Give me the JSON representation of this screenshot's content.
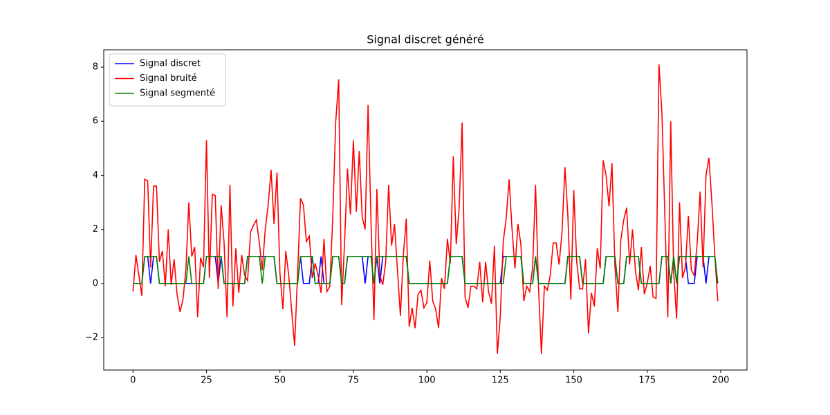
{
  "chart_data": {
    "type": "line",
    "title": "Signal discret généré",
    "x": [
      0,
      1,
      2,
      3,
      4,
      5,
      6,
      7,
      8,
      9,
      10,
      11,
      12,
      13,
      14,
      15,
      16,
      17,
      18,
      19,
      20,
      21,
      22,
      23,
      24,
      25,
      26,
      27,
      28,
      29,
      30,
      31,
      32,
      33,
      34,
      35,
      36,
      37,
      38,
      39,
      40,
      41,
      42,
      43,
      44,
      45,
      46,
      47,
      48,
      49,
      50,
      51,
      52,
      53,
      54,
      55,
      56,
      57,
      58,
      59,
      60,
      61,
      62,
      63,
      64,
      65,
      66,
      67,
      68,
      69,
      70,
      71,
      72,
      73,
      74,
      75,
      76,
      77,
      78,
      79,
      80,
      81,
      82,
      83,
      84,
      85,
      86,
      87,
      88,
      89,
      90,
      91,
      92,
      93,
      94,
      95,
      96,
      97,
      98,
      99,
      100,
      101,
      102,
      103,
      104,
      105,
      106,
      107,
      108,
      109,
      110,
      111,
      112,
      113,
      114,
      115,
      116,
      117,
      118,
      119,
      120,
      121,
      122,
      123,
      124,
      125,
      126,
      127,
      128,
      129,
      130,
      131,
      132,
      133,
      134,
      135,
      136,
      137,
      138,
      139,
      140,
      141,
      142,
      143,
      144,
      145,
      146,
      147,
      148,
      149,
      150,
      151,
      152,
      153,
      154,
      155,
      156,
      157,
      158,
      159,
      160,
      161,
      162,
      163,
      164,
      165,
      166,
      167,
      168,
      169,
      170,
      171,
      172,
      173,
      174,
      175,
      176,
      177,
      178,
      179,
      180,
      181,
      182,
      183,
      184,
      185,
      186,
      187,
      188,
      189,
      190,
      191,
      192,
      193,
      194,
      195,
      196,
      197,
      198,
      199
    ],
    "series": [
      {
        "name": "Signal discret",
        "color": "#0000ff",
        "values": [
          0,
          0,
          0,
          0,
          1,
          1,
          0,
          1,
          1,
          0,
          0,
          0,
          0,
          0,
          0,
          0,
          0,
          0,
          0,
          0,
          0,
          0,
          0,
          0,
          0,
          1,
          1,
          1,
          1,
          0,
          1,
          0,
          0,
          0,
          0,
          0,
          0,
          0,
          0,
          1,
          1,
          1,
          1,
          1,
          1,
          1,
          1,
          1,
          1,
          0,
          0,
          0,
          0,
          0,
          0,
          0,
          0,
          1,
          0,
          0,
          0,
          1,
          0,
          0,
          1,
          0,
          0,
          0,
          1,
          1,
          1,
          0,
          0,
          1,
          1,
          1,
          1,
          1,
          1,
          0,
          1,
          1,
          0,
          1,
          0,
          1,
          1,
          1,
          1,
          1,
          1,
          1,
          1,
          1,
          0,
          0,
          0,
          0,
          0,
          0,
          0,
          0,
          0,
          0,
          0,
          0,
          0,
          0,
          1,
          1,
          1,
          1,
          1,
          0,
          0,
          0,
          0,
          0,
          0,
          0,
          0,
          0,
          0,
          0,
          0,
          0,
          1,
          1,
          1,
          1,
          1,
          1,
          1,
          0,
          0,
          0,
          0,
          1,
          0,
          0,
          0,
          0,
          0,
          0,
          0,
          0,
          0,
          0,
          1,
          1,
          1,
          1,
          1,
          0,
          0,
          0,
          0,
          0,
          0,
          0,
          0,
          1,
          1,
          1,
          1,
          0,
          0,
          0,
          1,
          1,
          1,
          1,
          1,
          0,
          0,
          0,
          0,
          0,
          0,
          0,
          1,
          1,
          1,
          0,
          1,
          0,
          1,
          1,
          1,
          0,
          0,
          0,
          1,
          1,
          1,
          0,
          1,
          1,
          1,
          0
        ]
      },
      {
        "name": "Signal bruité",
        "color": "#ff0000",
        "values": [
          -0.3,
          1.05,
          0.3,
          -0.45,
          3.85,
          3.8,
          0.6,
          3.6,
          3.6,
          0.8,
          1.2,
          -0.1,
          2.0,
          -0.05,
          0.9,
          -0.4,
          -1.05,
          -0.6,
          0.5,
          3.0,
          1.0,
          1.35,
          -1.25,
          0.95,
          0.6,
          5.3,
          0.2,
          3.3,
          3.25,
          -0.2,
          2.9,
          1.5,
          -1.25,
          3.65,
          -0.85,
          1.3,
          -0.35,
          1.05,
          0.3,
          0.1,
          1.9,
          2.15,
          2.35,
          1.5,
          0.5,
          2.0,
          2.9,
          4.2,
          2.2,
          4.1,
          0.4,
          -0.95,
          1.2,
          0.3,
          -1.0,
          -2.3,
          0.3,
          3.15,
          2.9,
          1.55,
          1.75,
          0.2,
          0.75,
          0.3,
          -0.35,
          1.65,
          -0.3,
          -0.1,
          2.5,
          6.0,
          7.55,
          -0.8,
          1.5,
          4.25,
          2.55,
          5.3,
          2.65,
          4.9,
          2.45,
          2.0,
          6.6,
          2.3,
          -1.35,
          3.5,
          0.3,
          -0.05,
          0.8,
          3.65,
          1.4,
          2.2,
          0.5,
          -1.2,
          1.05,
          2.4,
          -1.6,
          -0.9,
          -1.65,
          -0.4,
          -0.25,
          -0.9,
          -0.7,
          0.85,
          -0.65,
          -0.95,
          -1.65,
          0.2,
          -0.2,
          1.65,
          0.75,
          4.7,
          1.45,
          2.8,
          5.95,
          -0.5,
          -0.9,
          -0.1,
          -0.1,
          -0.2,
          0.8,
          -0.7,
          0.8,
          -0.3,
          -0.75,
          1.4,
          -2.6,
          -1.2,
          1.55,
          2.4,
          3.85,
          2.0,
          0.55,
          2.2,
          1.45,
          -0.65,
          -0.1,
          -0.3,
          0.6,
          3.65,
          -0.15,
          -2.6,
          -0.1,
          -0.25,
          0.3,
          1.5,
          1.5,
          0.7,
          1.9,
          4.3,
          2.5,
          -0.6,
          3.45,
          0.8,
          -0.2,
          -0.2,
          0.9,
          -1.85,
          -0.35,
          -0.85,
          1.3,
          0.55,
          4.55,
          4.0,
          2.85,
          4.45,
          0.65,
          -1.05,
          1.6,
          2.35,
          2.8,
          0.7,
          2.0,
          0.45,
          -0.25,
          1.35,
          -0.4,
          0.0,
          0.65,
          -0.5,
          -0.55,
          8.1,
          6.3,
          2.5,
          -1.25,
          6.0,
          0.4,
          -1.3,
          3.0,
          0.2,
          0.6,
          2.5,
          0.5,
          0.3,
          1.5,
          3.4,
          0.6,
          4.0,
          4.65,
          3.0,
          1.05,
          -0.65
        ]
      },
      {
        "name": "Signal segmenté",
        "color": "#008000",
        "values": [
          0,
          0,
          0,
          0,
          1,
          1,
          1,
          1,
          1,
          0,
          0,
          0,
          0,
          0,
          0,
          0,
          0,
          0,
          0,
          1,
          0,
          0,
          0,
          0,
          0,
          1,
          1,
          1,
          1,
          1,
          1,
          0,
          0,
          0,
          0,
          0,
          0,
          0,
          0,
          1,
          1,
          1,
          1,
          1,
          0,
          1,
          1,
          1,
          1,
          0,
          0,
          0,
          0,
          0,
          0,
          0,
          0,
          1,
          1,
          1,
          1,
          1,
          0,
          0,
          0,
          0,
          0,
          0,
          1,
          1,
          1,
          0,
          0,
          1,
          1,
          1,
          1,
          1,
          1,
          1,
          1,
          1,
          0,
          1,
          1,
          1,
          1,
          1,
          1,
          1,
          1,
          1,
          1,
          1,
          0,
          0,
          0,
          0,
          0,
          0,
          0,
          0,
          0,
          0,
          0,
          0,
          0,
          0,
          1,
          1,
          1,
          1,
          1,
          0,
          0,
          0,
          0,
          0,
          0,
          0,
          0,
          0,
          0,
          0,
          0,
          0,
          0,
          1,
          1,
          1,
          1,
          1,
          1,
          0,
          0,
          0,
          0,
          1,
          0,
          0,
          0,
          0,
          0,
          0,
          0,
          0,
          0,
          0,
          1,
          1,
          1,
          1,
          1,
          0,
          0,
          0,
          0,
          0,
          0,
          0,
          0,
          1,
          1,
          1,
          1,
          0,
          0,
          0,
          1,
          1,
          1,
          1,
          1,
          0,
          0,
          0,
          0,
          0,
          0,
          0,
          1,
          1,
          1,
          0,
          1,
          0,
          1,
          1,
          1,
          1,
          1,
          1,
          1,
          1,
          1,
          1,
          1,
          1,
          1,
          0
        ]
      }
    ],
    "xlim": [
      -9.95,
      208.95
    ],
    "ylim": [
      -3.2,
      8.64
    ],
    "xticks": [
      0,
      25,
      50,
      75,
      100,
      125,
      150,
      175,
      200
    ],
    "yticks": [
      {
        "value": -2,
        "label": "−2"
      },
      0,
      2,
      4,
      6,
      8
    ],
    "legend": "upper left",
    "grid": false
  }
}
